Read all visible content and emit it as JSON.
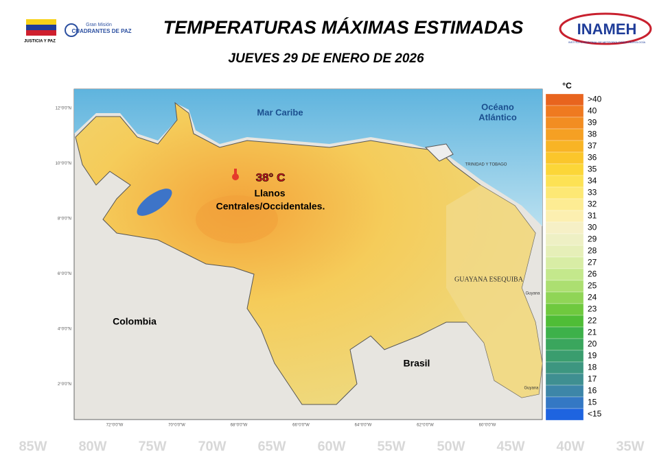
{
  "header": {
    "title": "TEMPERATURAS MÁXIMAS ESTIMADAS",
    "date": "JUEVES 29 DE ENERO DE 2026",
    "logo_left": "JUSTICIA Y PAZ",
    "logo_mission_1": "Gran Misión",
    "logo_mission_2": "CUADRANTES DE PAZ",
    "logo_right": "INAMEH",
    "logo_right_sub": "INSTITUTO NACIONAL DE METEOROLOGÍA E HIDROLOGÍA"
  },
  "map": {
    "labels": {
      "sea": "Mar Caribe",
      "ocean_1": "Océano",
      "ocean_2": "Atlántico",
      "colombia": "Colombia",
      "brasil": "Brasil",
      "guayana": "GUAYANA ESEQUIBA",
      "trinidad": "TRINIDAD Y TOBAGO",
      "guyana_1": "Guyana",
      "guyana_2": "Guyana"
    },
    "annotation": {
      "temp": "38° C",
      "line1": "Llanos",
      "line2": "Centrales/Occidentales."
    },
    "lat_labels": [
      "12°0'0\"N",
      "10°0'0\"N",
      "8°0'0\"N",
      "6°0'0\"N",
      "4°0'0\"N",
      "2°0'0\"N"
    ],
    "lon_labels": [
      "72°0'0\"W",
      "70°0'0\"W",
      "68°0'0\"W",
      "66°0'0\"W",
      "64°0'0\"W",
      "62°0'0\"W",
      "60°0'0\"W"
    ],
    "background_lon": [
      "85W",
      "80W",
      "75W",
      "70W",
      "65W",
      "60W",
      "55W",
      "50W",
      "45W",
      "40W",
      "35W"
    ]
  },
  "legend": {
    "unit": "°C",
    "items": [
      {
        "label": ">40",
        "color": "#e8641e"
      },
      {
        "label": "40",
        "color": "#ef7a20"
      },
      {
        "label": "39",
        "color": "#f28d22"
      },
      {
        "label": "38",
        "color": "#f5a023"
      },
      {
        "label": "37",
        "color": "#f8b425"
      },
      {
        "label": "36",
        "color": "#fbc62b"
      },
      {
        "label": "35",
        "color": "#fcd638"
      },
      {
        "label": "34",
        "color": "#fde254"
      },
      {
        "label": "33",
        "color": "#fde874"
      },
      {
        "label": "32",
        "color": "#fdec93"
      },
      {
        "label": "31",
        "color": "#fcefb0"
      },
      {
        "label": "30",
        "color": "#f6f0c6"
      },
      {
        "label": "29",
        "color": "#eef0c4"
      },
      {
        "label": "28",
        "color": "#e6efb8"
      },
      {
        "label": "27",
        "color": "#d8eda5"
      },
      {
        "label": "26",
        "color": "#c4e88c"
      },
      {
        "label": "25",
        "color": "#acdf71"
      },
      {
        "label": "24",
        "color": "#90d556"
      },
      {
        "label": "23",
        "color": "#6fc93e"
      },
      {
        "label": "22",
        "color": "#4fbd36"
      },
      {
        "label": "21",
        "color": "#3db14a"
      },
      {
        "label": "20",
        "color": "#3aa65d"
      },
      {
        "label": "19",
        "color": "#3a9d6e"
      },
      {
        "label": "18",
        "color": "#3d9680"
      },
      {
        "label": "17",
        "color": "#3f8f91"
      },
      {
        "label": "16",
        "color": "#3d86a8"
      },
      {
        "label": "15",
        "color": "#3478c4"
      },
      {
        "label": "<15",
        "color": "#1e64e0"
      }
    ]
  }
}
